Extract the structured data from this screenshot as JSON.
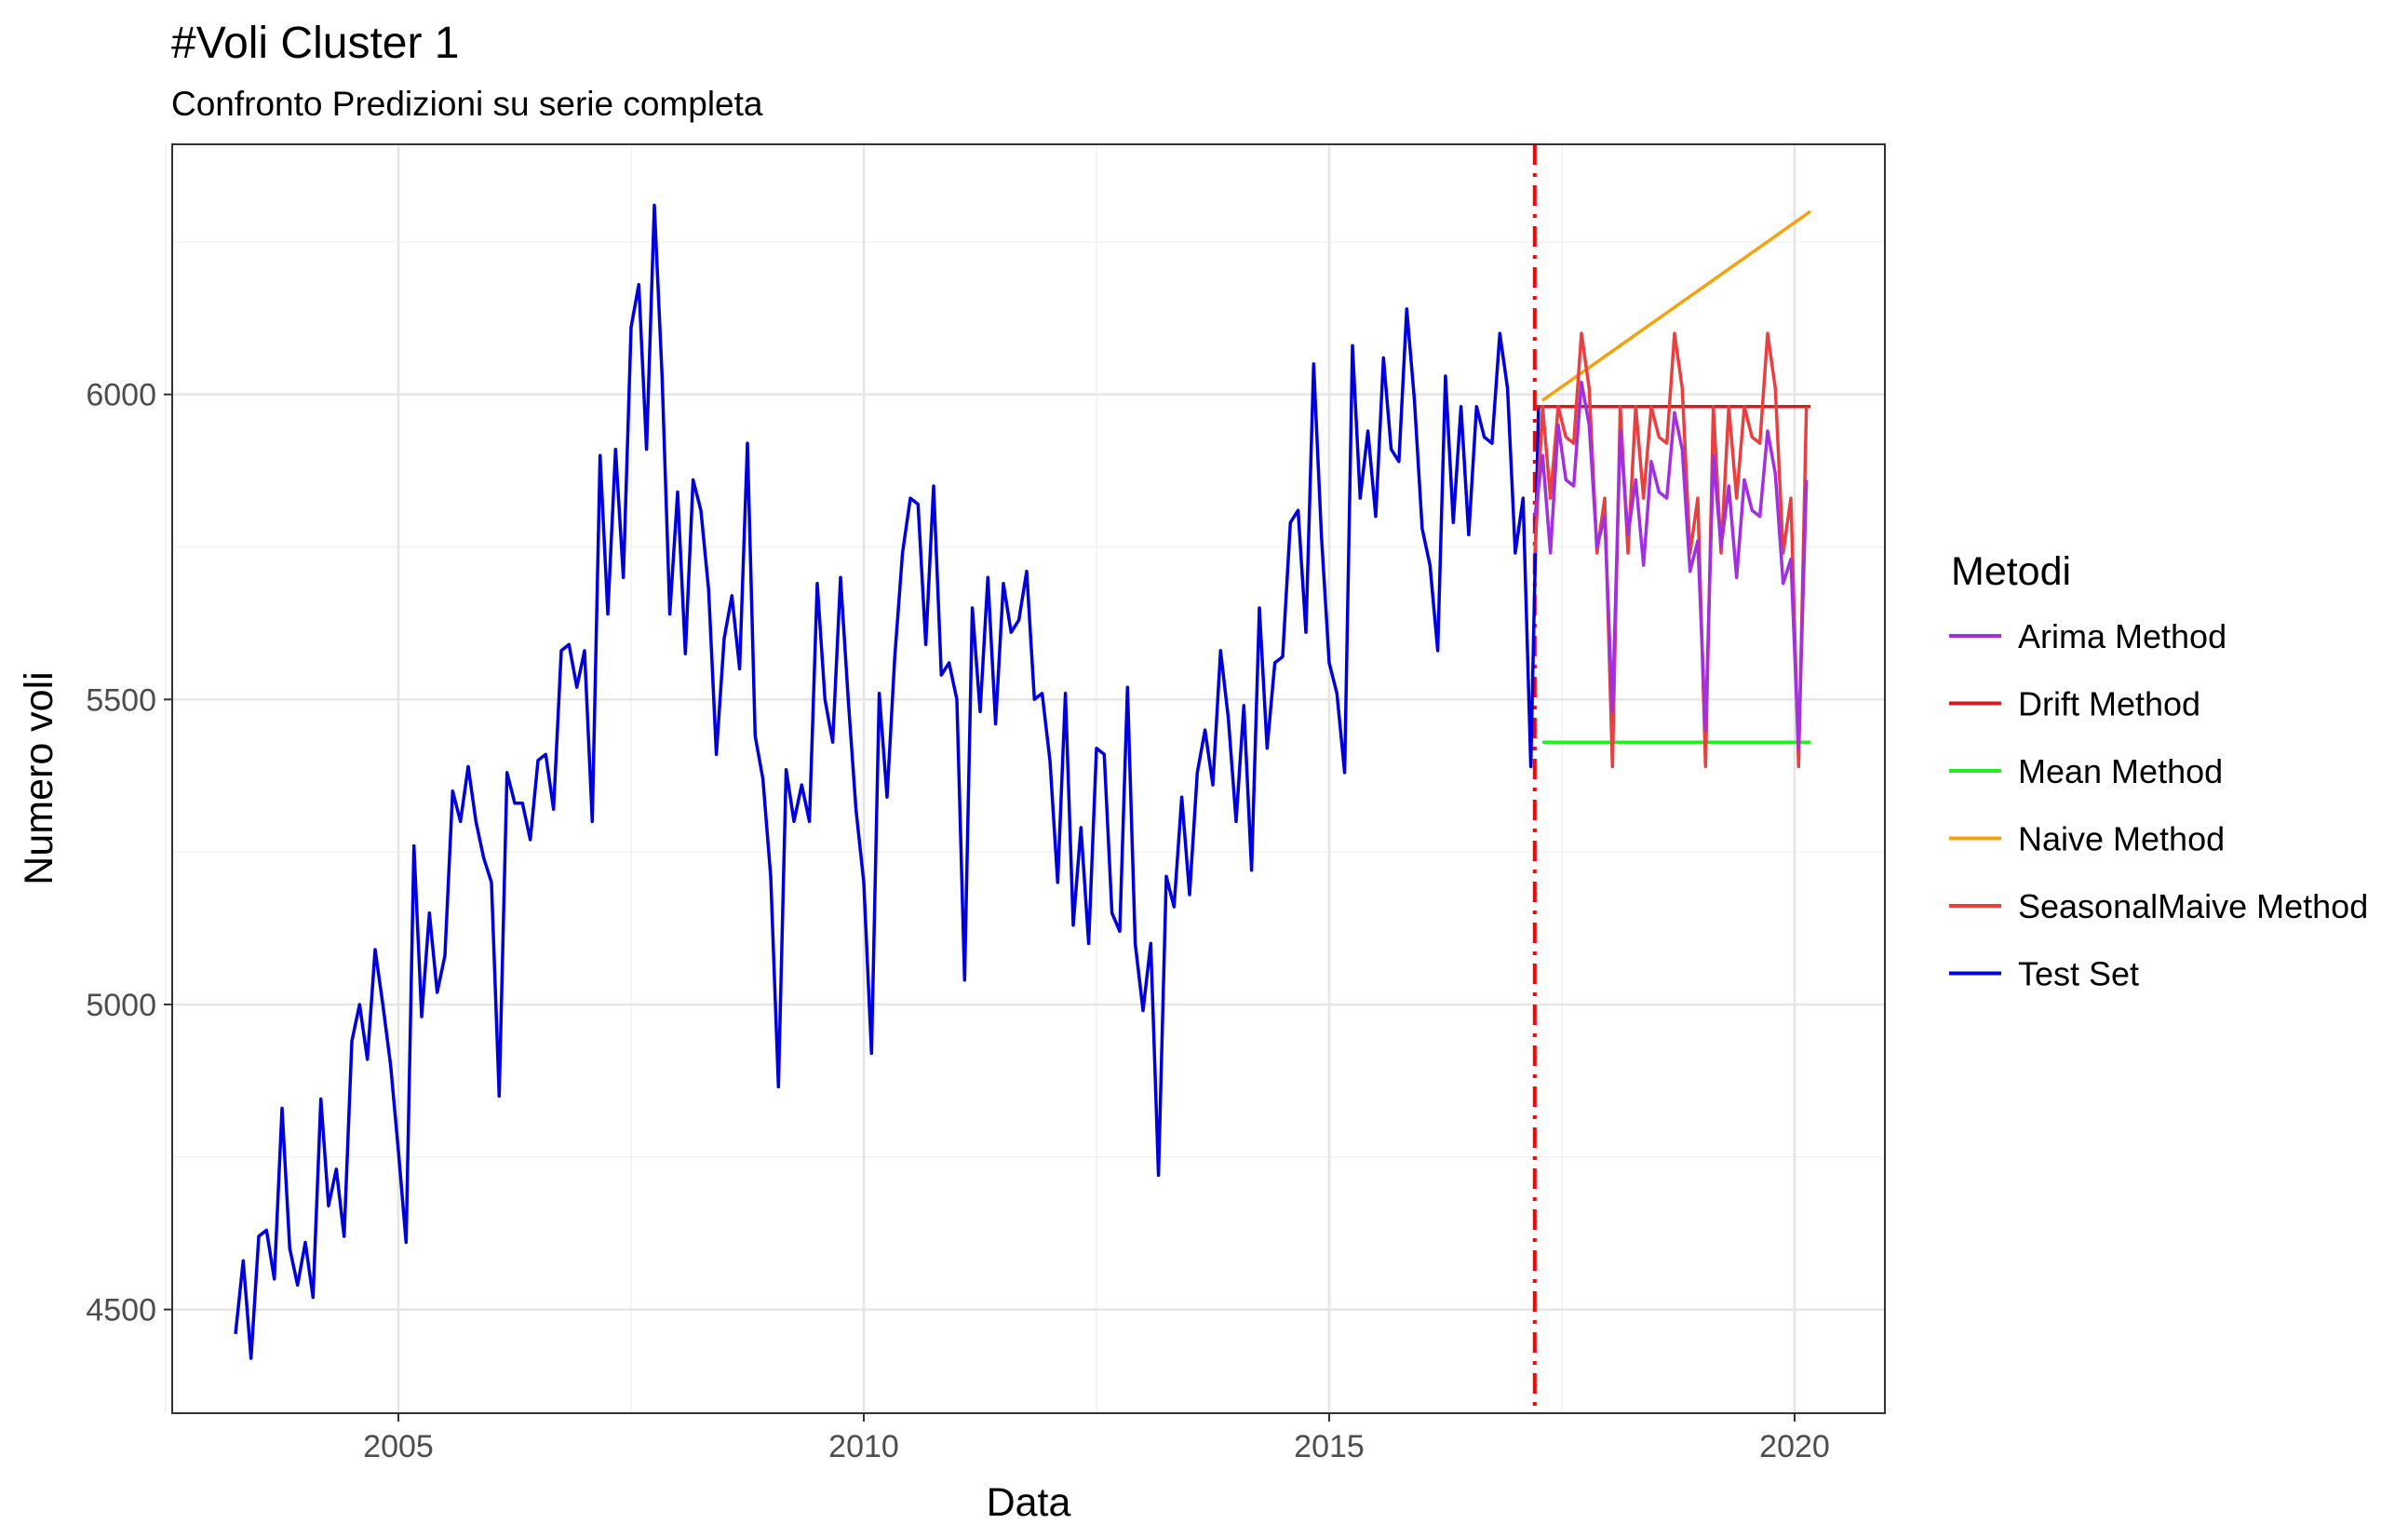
{
  "chart_data": {
    "type": "line",
    "title": "#Voli Cluster  1",
    "subtitle": "Confronto Predizioni su serie completa",
    "xlabel": "Data",
    "ylabel": "Numero voli",
    "xlim": [
      2002.57,
      2020.97
    ],
    "ylim": [
      4330,
      6410
    ],
    "x_ticks": [
      2005,
      2010,
      2015,
      2020
    ],
    "y_ticks": [
      4500,
      5000,
      5500,
      6000
    ],
    "x_minor_ticks": [
      2002.5,
      2007.5,
      2012.5,
      2017.5
    ],
    "y_minor_ticks": [
      4750,
      5250,
      5750,
      6250
    ],
    "grid": true,
    "split_line": {
      "x": 2017.208,
      "color": "#ff0000",
      "style": "dashdot"
    },
    "legend": {
      "title": "Metodi",
      "position": "right",
      "entries": [
        "Arima Method",
        "Drift Method",
        "Mean Method",
        "Naive Method",
        "SeasonalMaive Method",
        "Test Set"
      ]
    },
    "series": [
      {
        "name": "Test Set",
        "color": "#0000dd",
        "start": 2003.25,
        "step": 0.08333,
        "values": [
          4460,
          4580,
          4420,
          4620,
          4630,
          4550,
          4830,
          4600,
          4540,
          4610,
          4520,
          4845,
          4670,
          4730,
          4620,
          4940,
          5000,
          4910,
          5090,
          5000,
          4900,
          4760,
          4610,
          5260,
          4980,
          5150,
          5020,
          5080,
          5350,
          5300,
          5390,
          5300,
          5240,
          5200,
          4850,
          5380,
          5330,
          5330,
          5270,
          5400,
          5410,
          5320,
          5580,
          5590,
          5520,
          5580,
          5300,
          5900,
          5640,
          5910,
          5700,
          6110,
          6180,
          5910,
          6310,
          6030,
          5640,
          5840,
          5575,
          5860,
          5810,
          5680,
          5410,
          5600,
          5670,
          5550,
          5920,
          5440,
          5370,
          5210,
          4865,
          5385,
          5300,
          5360,
          5300,
          5690,
          5500,
          5430,
          5700,
          5500,
          5320,
          5200,
          4920,
          5510,
          5340,
          5570,
          5740,
          5830,
          5820,
          5590,
          5850,
          5540,
          5560,
          5500,
          5040,
          5650,
          5480,
          5700,
          5460,
          5690,
          5610,
          5630,
          5710,
          5500,
          5510,
          5400,
          5200,
          5510,
          5130,
          5290,
          5100,
          5420,
          5410,
          5150,
          5120,
          5520,
          5100,
          4990,
          5100,
          4720,
          5210,
          5160,
          5340,
          5180,
          5380,
          5450,
          5360,
          5580,
          5470,
          5300,
          5490,
          5220,
          5650,
          5420,
          5560,
          5570,
          5790,
          5810,
          5610,
          6050,
          5770,
          5560,
          5510,
          5380,
          6080,
          5830,
          5940,
          5800,
          6060,
          5910,
          5890,
          6140,
          5990,
          5780,
          5720,
          5580,
          6030,
          5790,
          5980,
          5770,
          5980,
          5930,
          5920,
          6100,
          6010,
          5740,
          5830,
          5390,
          5980
        ]
      },
      {
        "name": "Drift Method",
        "color": "#d71a1a",
        "x": [
          2017.21,
          2017.29,
          2020.17
        ],
        "values": [
          5980,
          5980,
          5980
        ]
      },
      {
        "name": "Mean Method",
        "color": "#22ee22",
        "x": [
          2017.29,
          2020.17
        ],
        "values": [
          5430,
          5430
        ]
      },
      {
        "name": "Naive Method",
        "color": "#f2a30f",
        "x": [
          2017.29,
          2020.17
        ],
        "values": [
          5990,
          6300
        ]
      },
      {
        "name": "SeasonalMaive Method",
        "color": "#e84040",
        "start": 2017.21,
        "step": 0.08333,
        "values": [
          5740,
          5980,
          5830,
          5980,
          5930,
          5920,
          6100,
          6010,
          5740,
          5830,
          5390,
          5980,
          5740,
          5980,
          5830,
          5980,
          5930,
          5920,
          6100,
          6010,
          5740,
          5830,
          5390,
          5980,
          5740,
          5980,
          5830,
          5980,
          5930,
          5920,
          6100,
          6010,
          5740,
          5830,
          5390,
          5980
        ]
      },
      {
        "name": "Arima Method",
        "color": "#a030e0",
        "start": 2017.21,
        "step": 0.08333,
        "values": [
          5800,
          5900,
          5740,
          5950,
          5860,
          5850,
          6020,
          5950,
          5750,
          5800,
          5480,
          5940,
          5770,
          5860,
          5720,
          5890,
          5840,
          5830,
          5970,
          5910,
          5710,
          5760,
          5450,
          5900,
          5750,
          5850,
          5700,
          5860,
          5810,
          5800,
          5940,
          5870,
          5690,
          5730,
          5420,
          5860
        ]
      }
    ]
  }
}
